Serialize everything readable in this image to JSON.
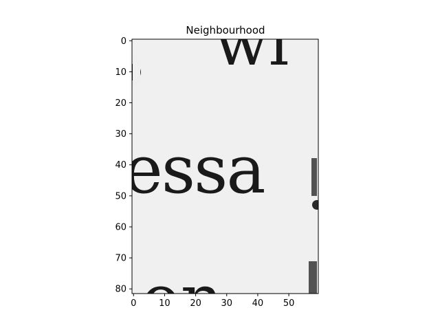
{
  "chart_data": {
    "type": "image",
    "title": "Neighbourhood",
    "xlim": [
      -0.5,
      59.5
    ],
    "ylim": [
      81.5,
      -0.5
    ],
    "xticks": [
      0,
      10,
      20,
      30,
      40,
      50
    ],
    "yticks": [
      0,
      10,
      20,
      30,
      40,
      50,
      60,
      70,
      80
    ],
    "y_axis_inverted": true,
    "colormap": "gray",
    "image_description_values": {
      "background": "#efefef",
      "ink": "#1a1a1a"
    }
  }
}
